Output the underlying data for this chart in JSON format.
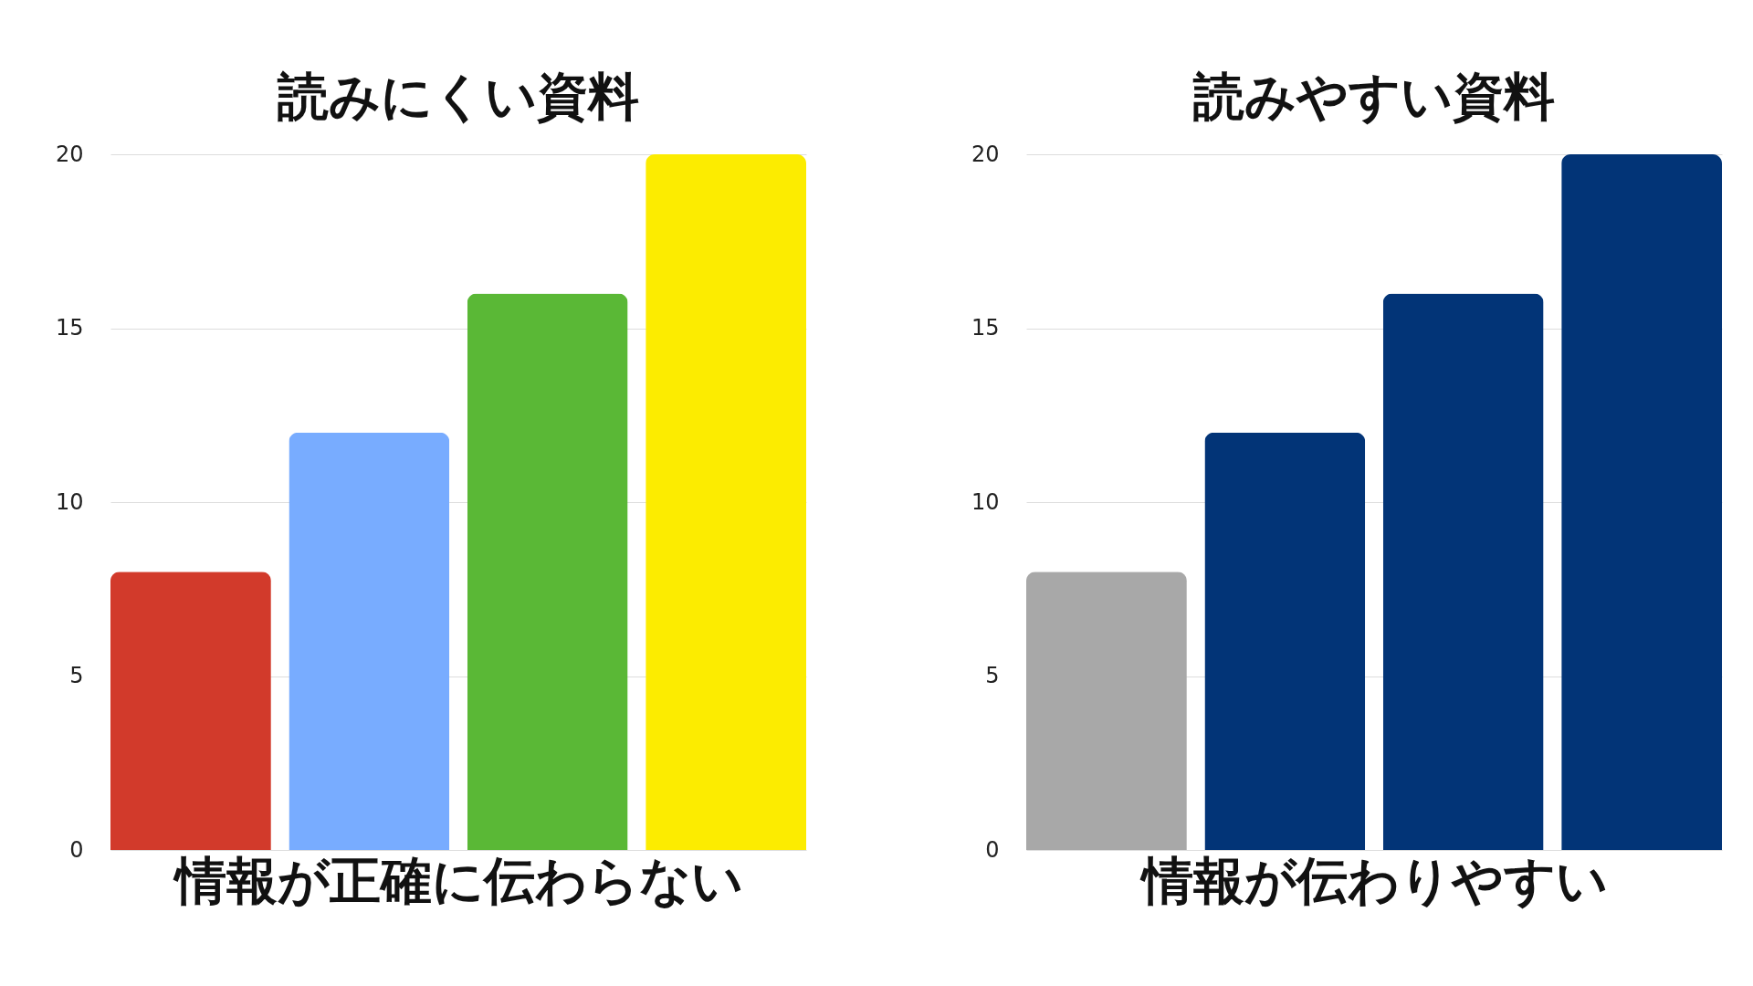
{
  "chart_data": [
    {
      "type": "bar",
      "title": "読みにくい資料",
      "xlabel": "情報が正確に伝わらない",
      "categories": [
        null,
        null,
        null,
        null
      ],
      "values": [
        8,
        12,
        16,
        20
      ],
      "colors": [
        "#d23a2b",
        "#78acff",
        "#5ab836",
        "#fcec00"
      ],
      "ylim": [
        0,
        20
      ],
      "yticks": [
        0,
        5,
        10,
        15,
        20
      ],
      "grid": "y",
      "tick_labels": "y"
    },
    {
      "type": "bar",
      "title": "読みやすい資料",
      "xlabel": "情報が伝わりやすい",
      "categories": [
        null,
        null,
        null,
        null
      ],
      "values": [
        8,
        12,
        16,
        20
      ],
      "colors": [
        "#a8a8a8",
        "#023477",
        "#023477",
        "#023477"
      ],
      "ylim": [
        0,
        20
      ],
      "yticks": [
        0,
        5,
        10,
        15,
        20
      ],
      "grid": "y",
      "tick_labels": "y"
    }
  ]
}
